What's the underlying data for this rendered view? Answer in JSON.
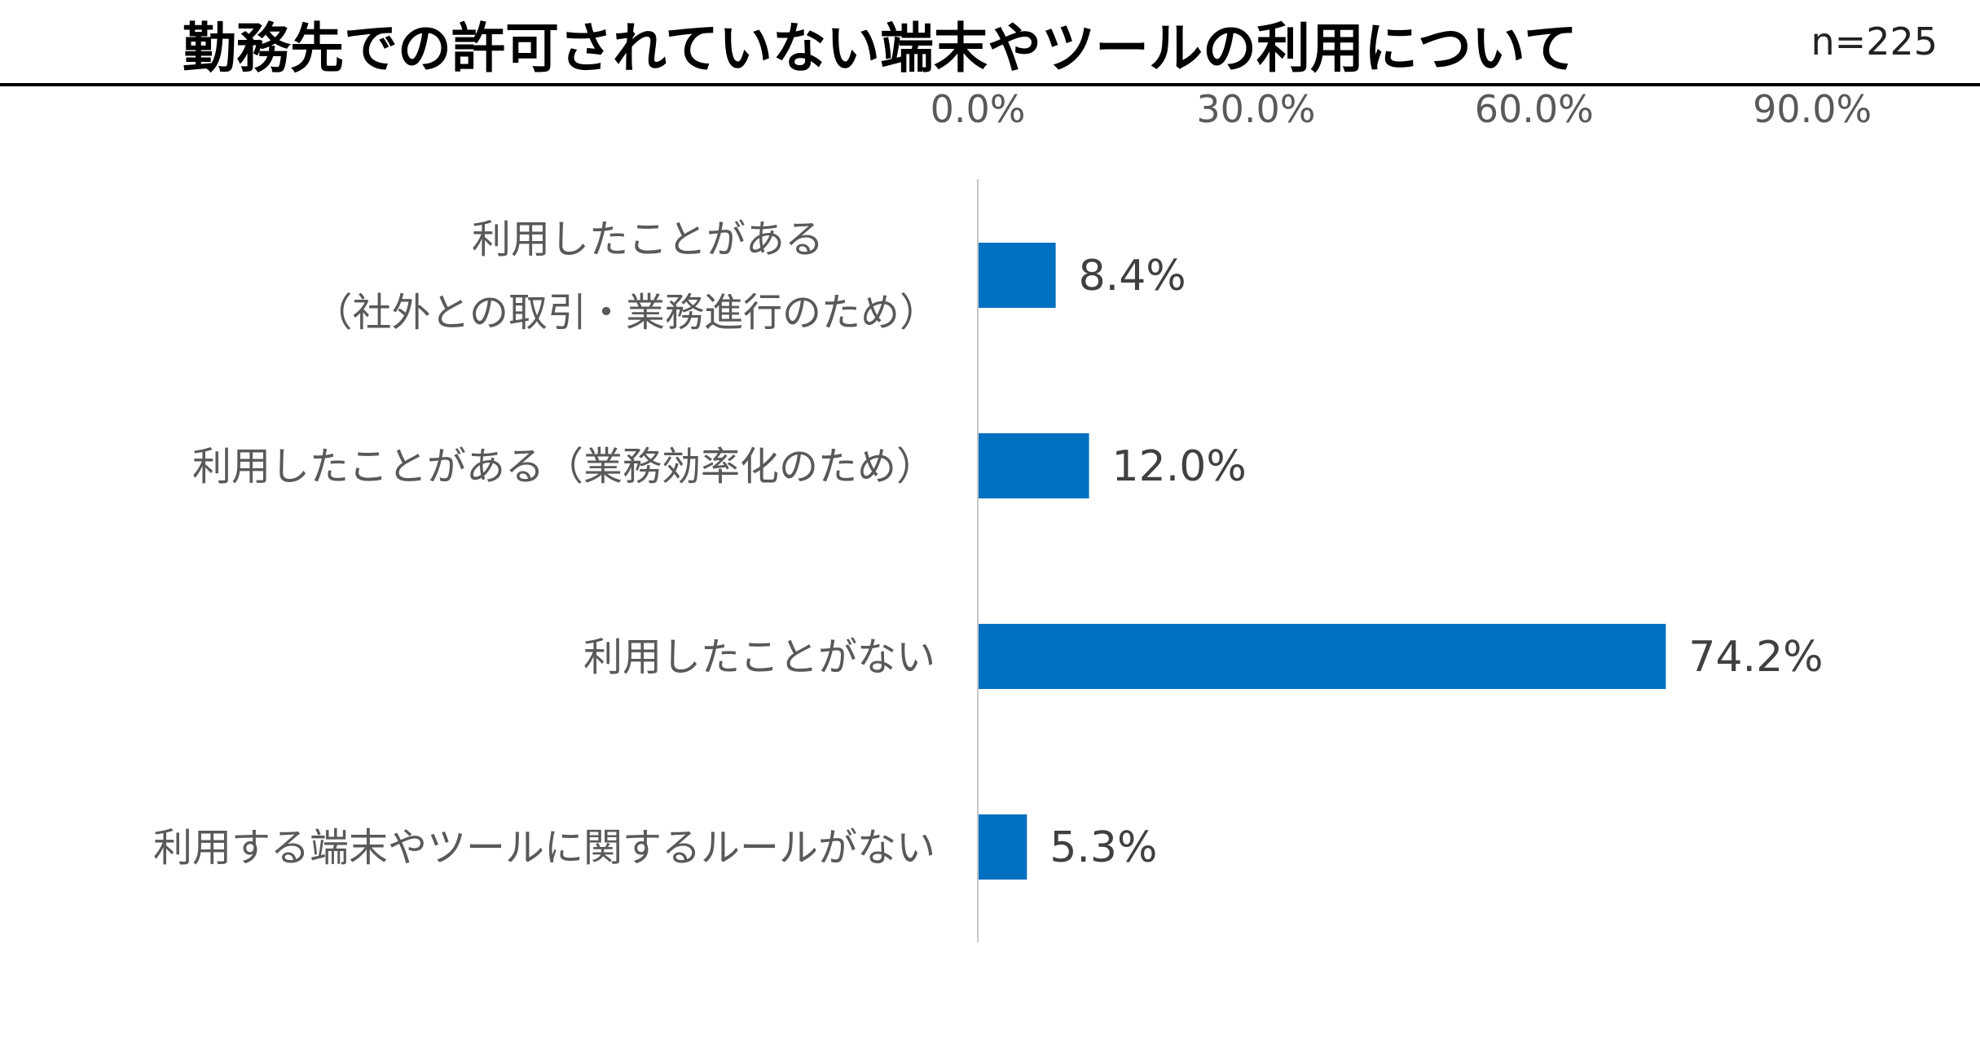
{
  "header": {
    "title": "勤務先での許可されていない端末やツールの利用について",
    "sample_size": "n=225"
  },
  "colors": {
    "bar": "#0070C0",
    "axis_line": "#C8C8C8",
    "tick_text": "#595959",
    "category_text": "#595959",
    "value_text": "#404040"
  },
  "chart_data": {
    "type": "bar",
    "orientation": "horizontal",
    "title": "勤務先での許可されていない端末やツールの利用について",
    "xlim": [
      0,
      90
    ],
    "x_ticks": [
      "0.0%",
      "30.0%",
      "60.0%",
      "90.0%"
    ],
    "x_tick_values": [
      0,
      30,
      60,
      90
    ],
    "x_axis_position": "top",
    "grid": false,
    "legend": "none",
    "categories": [
      [
        "利用したことがある",
        "（社外との取引・業務進行のため）"
      ],
      [
        "利用したことがある（業務効率化のため）"
      ],
      [
        "利用したことがない"
      ],
      [
        "利用する端末やツールに関するルールがない"
      ]
    ],
    "values": [
      8.4,
      12.0,
      74.2,
      5.3
    ],
    "value_labels": [
      "8.4%",
      "12.0%",
      "74.2%",
      "5.3%"
    ]
  }
}
